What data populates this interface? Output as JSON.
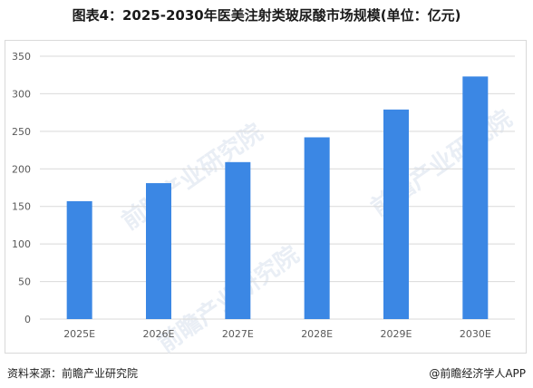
{
  "title": "图表4：2025-2030年医美注射类玻尿酸市场规模(单位：亿元)",
  "watermark": "前瞻产业研究院",
  "source": "资料来源：前瞻产业研究院",
  "credit": "@前瞻经济学人APP",
  "colors": {
    "bar": "#3b87e4",
    "grid": "#d9d9d9",
    "axis_text": "#595959"
  },
  "chart_data": {
    "type": "bar",
    "categories": [
      "2025E",
      "2026E",
      "2027E",
      "2028E",
      "2029E",
      "2030E"
    ],
    "values": [
      157,
      181,
      209,
      242,
      279,
      323
    ],
    "ylim": [
      0,
      350
    ],
    "yticks": [
      0,
      50,
      100,
      150,
      200,
      250,
      300,
      350
    ],
    "grid": true,
    "xlabel": "",
    "ylabel": ""
  }
}
